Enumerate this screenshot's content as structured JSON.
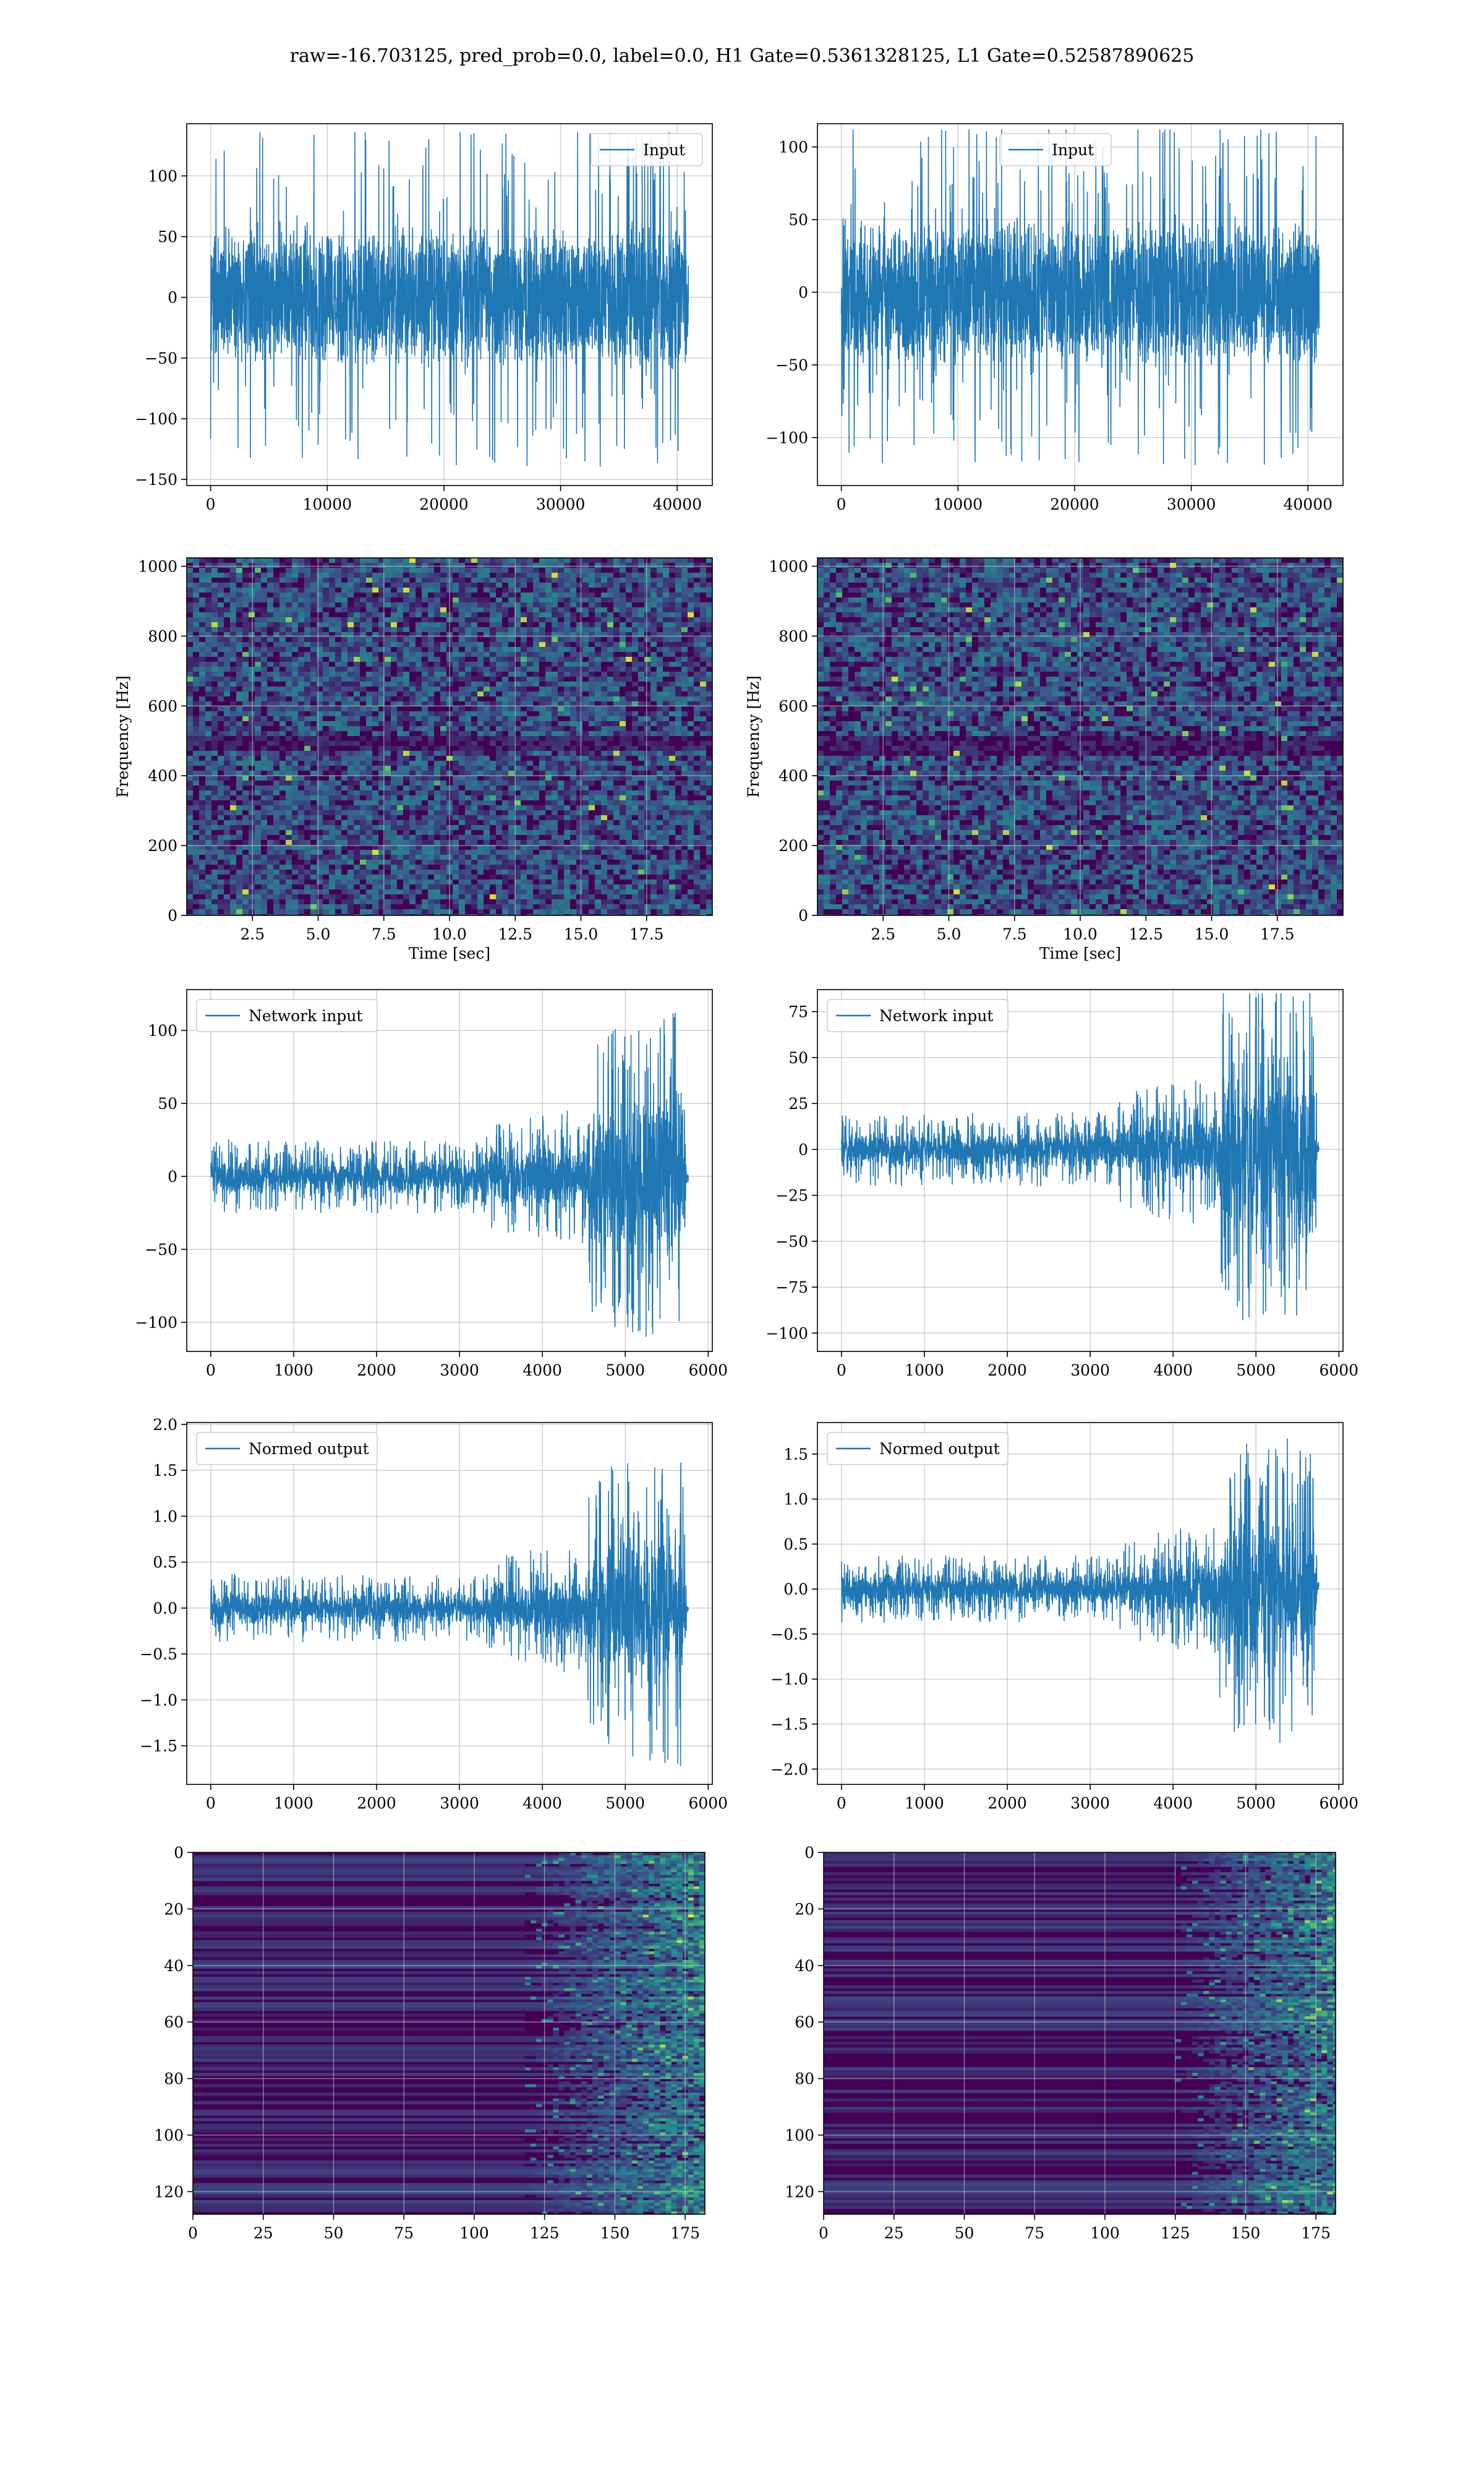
{
  "figure": {
    "suptitle": "raw=-16.703125, pred_prob=0.0, label=0.0, H1 Gate=0.5361328125, L1 Gate=0.52587890625"
  },
  "colors": {
    "line": "#1f77b4",
    "viridis_dark": "#440154",
    "grid": "#b0b0b0"
  },
  "chart_data": [
    {
      "id": "h1-input",
      "type": "line",
      "signal": "noise",
      "legend": "Input",
      "legend_loc": "upper right",
      "x_range": [
        0,
        40960
      ],
      "xlim": [
        -2048,
        43008
      ],
      "ylim": [
        -155,
        143
      ],
      "xticks": [
        0,
        10000,
        20000,
        30000,
        40000
      ],
      "yticks": [
        -150,
        -100,
        -50,
        0,
        50,
        100
      ],
      "xtick_labels": [
        "0",
        "10000",
        "20000",
        "30000",
        "40000"
      ],
      "ytick_labels": [
        "−150",
        "−100",
        "−50",
        "0",
        "50",
        "100"
      ],
      "core_band": [
        -62,
        62
      ],
      "peak_band": [
        -140,
        136
      ],
      "grid": true
    },
    {
      "id": "l1-input",
      "type": "line",
      "signal": "noise",
      "legend": "Input",
      "legend_loc": "upper center",
      "x_range": [
        0,
        40960
      ],
      "xlim": [
        -2048,
        43008
      ],
      "ylim": [
        -133,
        116
      ],
      "xticks": [
        0,
        10000,
        20000,
        30000,
        40000
      ],
      "yticks": [
        -100,
        -50,
        0,
        50,
        100
      ],
      "xtick_labels": [
        "0",
        "10000",
        "20000",
        "30000",
        "40000"
      ],
      "ytick_labels": [
        "−100",
        "−50",
        "0",
        "50",
        "100"
      ],
      "core_band": [
        -55,
        55
      ],
      "peak_band": [
        -120,
        112
      ],
      "grid": true
    },
    {
      "id": "h1-spectrogram",
      "type": "heatmap",
      "xlabel": "Time [sec]",
      "ylabel": "Frequency [Hz]",
      "xlim": [
        0,
        20
      ],
      "ylim": [
        0,
        1024
      ],
      "xticks": [
        2.5,
        5.0,
        7.5,
        10.0,
        12.5,
        15.0,
        17.5
      ],
      "yticks": [
        0,
        200,
        400,
        600,
        800,
        1000
      ],
      "xtick_labels": [
        "2.5",
        "5.0",
        "7.5",
        "10.0",
        "12.5",
        "15.0",
        "17.5"
      ],
      "ytick_labels": [
        "0",
        "200",
        "400",
        "600",
        "800",
        "1000"
      ],
      "dark_bands_hz": [
        [
          480,
          515
        ]
      ],
      "grid": true
    },
    {
      "id": "l1-spectrogram",
      "type": "heatmap",
      "xlabel": "Time [sec]",
      "ylabel": "Frequency [Hz]",
      "xlim": [
        0,
        20
      ],
      "ylim": [
        0,
        1024
      ],
      "xticks": [
        2.5,
        5.0,
        7.5,
        10.0,
        12.5,
        15.0,
        17.5
      ],
      "yticks": [
        0,
        200,
        400,
        600,
        800,
        1000
      ],
      "xtick_labels": [
        "2.5",
        "5.0",
        "7.5",
        "10.0",
        "12.5",
        "15.0",
        "17.5"
      ],
      "ytick_labels": [
        "0",
        "200",
        "400",
        "600",
        "800",
        "1000"
      ],
      "dark_bands_hz": [
        [
          470,
          520
        ]
      ],
      "grid": true
    },
    {
      "id": "h1-network-input",
      "type": "line",
      "signal": "chirp",
      "legend": "Network input",
      "legend_loc": "upper left",
      "x_range": [
        0,
        5760
      ],
      "xlim": [
        -290,
        6050
      ],
      "ylim": [
        -120,
        128
      ],
      "xticks": [
        0,
        1000,
        2000,
        3000,
        4000,
        5000,
        6000
      ],
      "yticks": [
        -100,
        -50,
        0,
        50,
        100
      ],
      "xtick_labels": [
        "0",
        "1000",
        "2000",
        "3000",
        "4000",
        "5000",
        "6000"
      ],
      "ytick_labels": [
        "−100",
        "−50",
        "0",
        "50",
        "100"
      ],
      "envelope": [
        [
          0,
          15
        ],
        [
          3300,
          15
        ],
        [
          3400,
          22
        ],
        [
          4500,
          28
        ],
        [
          4600,
          60
        ],
        [
          5700,
          70
        ],
        [
          5740,
          3
        ],
        [
          5820,
          3
        ]
      ],
      "peak_range": [
        -110,
        120
      ],
      "grid": true
    },
    {
      "id": "l1-network-input",
      "type": "line",
      "signal": "chirp",
      "legend": "Network input",
      "legend_loc": "upper left",
      "x_range": [
        0,
        5760
      ],
      "xlim": [
        -290,
        6050
      ],
      "ylim": [
        -110,
        87
      ],
      "xticks": [
        0,
        1000,
        2000,
        3000,
        4000,
        5000,
        6000
      ],
      "yticks": [
        -100,
        -75,
        -50,
        -25,
        0,
        25,
        50,
        75
      ],
      "xtick_labels": [
        "0",
        "1000",
        "2000",
        "3000",
        "4000",
        "5000",
        "6000"
      ],
      "ytick_labels": [
        "−100",
        "−75",
        "−50",
        "−25",
        "0",
        "25",
        "50",
        "75"
      ],
      "envelope": [
        [
          0,
          12
        ],
        [
          3300,
          12
        ],
        [
          3400,
          20
        ],
        [
          4500,
          25
        ],
        [
          4600,
          55
        ],
        [
          5700,
          60
        ],
        [
          5740,
          3
        ],
        [
          5820,
          3
        ]
      ],
      "peak_range": [
        -98,
        85
      ],
      "grid": true
    },
    {
      "id": "h1-normed-output",
      "type": "line",
      "signal": "chirp",
      "legend": "Normed output",
      "legend_loc": "upper left",
      "x_range": [
        0,
        5760
      ],
      "xlim": [
        -290,
        6050
      ],
      "ylim": [
        -1.92,
        2.02
      ],
      "xticks": [
        0,
        1000,
        2000,
        3000,
        4000,
        5000,
        6000
      ],
      "yticks": [
        -1.5,
        -1.0,
        -0.5,
        0.0,
        0.5,
        1.0,
        1.5,
        2.0
      ],
      "xtick_labels": [
        "0",
        "1000",
        "2000",
        "3000",
        "4000",
        "5000",
        "6000"
      ],
      "ytick_labels": [
        "−1.5",
        "−1.0",
        "−0.5",
        "0.0",
        "0.5",
        "1.0",
        "1.5",
        "2.0"
      ],
      "envelope": [
        [
          0,
          0.22
        ],
        [
          3300,
          0.22
        ],
        [
          3400,
          0.32
        ],
        [
          4500,
          0.45
        ],
        [
          4600,
          0.9
        ],
        [
          5700,
          1.05
        ],
        [
          5740,
          0.05
        ],
        [
          5820,
          0.05
        ]
      ],
      "peak_range": [
        -1.72,
        1.85
      ],
      "grid": true
    },
    {
      "id": "l1-normed-output",
      "type": "line",
      "signal": "chirp",
      "legend": "Normed output",
      "legend_loc": "upper left",
      "x_range": [
        0,
        5760
      ],
      "xlim": [
        -290,
        6050
      ],
      "ylim": [
        -2.17,
        1.85
      ],
      "xticks": [
        0,
        1000,
        2000,
        3000,
        4000,
        5000,
        6000
      ],
      "yticks": [
        -2.0,
        -1.5,
        -1.0,
        -0.5,
        0.0,
        0.5,
        1.0,
        1.5
      ],
      "xtick_labels": [
        "0",
        "1000",
        "2000",
        "3000",
        "4000",
        "5000",
        "6000"
      ],
      "ytick_labels": [
        "−2.0",
        "−1.5",
        "−1.0",
        "−0.5",
        "0.0",
        "0.5",
        "1.0",
        "1.5"
      ],
      "envelope": [
        [
          0,
          0.22
        ],
        [
          3300,
          0.22
        ],
        [
          3400,
          0.32
        ],
        [
          4500,
          0.45
        ],
        [
          4600,
          0.95
        ],
        [
          5700,
          1.05
        ],
        [
          5740,
          0.05
        ],
        [
          5820,
          0.05
        ]
      ],
      "peak_range": [
        -2.0,
        1.75
      ],
      "grid": true
    },
    {
      "id": "h1-feature-map",
      "type": "heatmap",
      "xlim": [
        0,
        182
      ],
      "ylim": [
        128,
        0
      ],
      "xticks": [
        0,
        25,
        50,
        75,
        100,
        125,
        150,
        175
      ],
      "yticks": [
        0,
        20,
        40,
        60,
        80,
        100,
        120
      ],
      "xtick_labels": [
        "0",
        "25",
        "50",
        "75",
        "100",
        "125",
        "150",
        "175"
      ],
      "ytick_labels": [
        "0",
        "20",
        "40",
        "60",
        "80",
        "100",
        "120"
      ],
      "activity_onset": 118,
      "grid": true
    },
    {
      "id": "l1-feature-map",
      "type": "heatmap",
      "xlim": [
        0,
        182
      ],
      "ylim": [
        128,
        0
      ],
      "xticks": [
        0,
        25,
        50,
        75,
        100,
        125,
        150,
        175
      ],
      "yticks": [
        0,
        20,
        40,
        60,
        80,
        100,
        120
      ],
      "xtick_labels": [
        "0",
        "25",
        "50",
        "75",
        "100",
        "125",
        "150",
        "175"
      ],
      "ytick_labels": [
        "0",
        "20",
        "40",
        "60",
        "80",
        "100",
        "120"
      ],
      "activity_onset": 125,
      "grid": true
    }
  ]
}
